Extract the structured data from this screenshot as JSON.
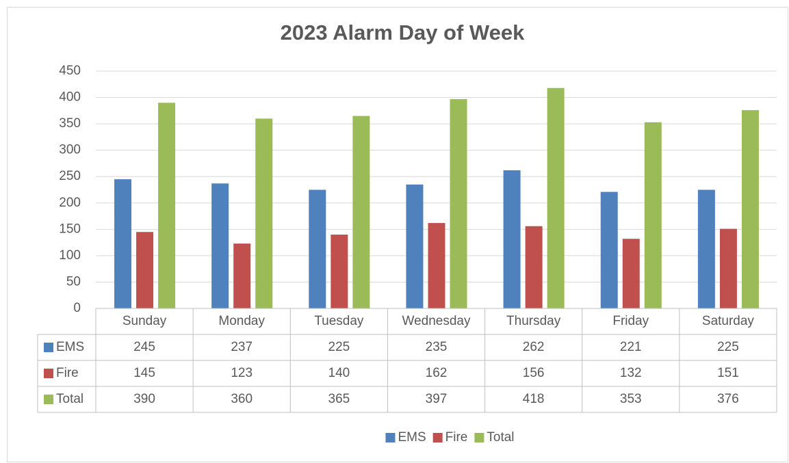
{
  "chart_data": {
    "type": "bar",
    "title": "2023 Alarm Day of Week",
    "categories": [
      "Sunday",
      "Monday",
      "Tuesday",
      "Wednesday",
      "Thursday",
      "Friday",
      "Saturday"
    ],
    "series": [
      {
        "name": "EMS",
        "color": "#4f81bd",
        "values": [
          245,
          237,
          225,
          235,
          262,
          221,
          225
        ]
      },
      {
        "name": "Fire",
        "color": "#c0504d",
        "values": [
          145,
          123,
          140,
          162,
          156,
          132,
          151
        ]
      },
      {
        "name": "Total",
        "color": "#9bbb59",
        "values": [
          390,
          360,
          365,
          397,
          418,
          353,
          376
        ]
      }
    ],
    "ylim": [
      0,
      450
    ],
    "yticks": [
      0,
      50,
      100,
      150,
      200,
      250,
      300,
      350,
      400,
      450
    ],
    "grid": true,
    "legend": "bottom"
  }
}
